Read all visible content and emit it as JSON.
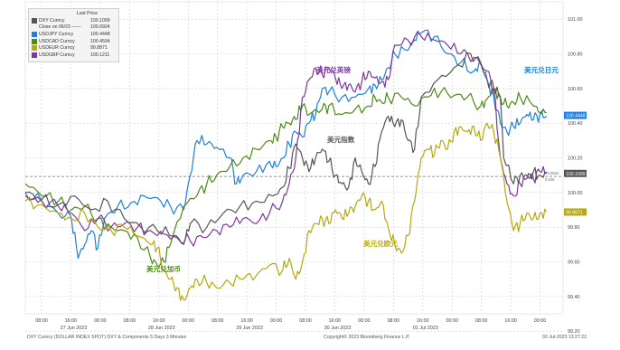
{
  "chart_data": {
    "type": "line",
    "title": "",
    "xlabel": "",
    "ylabel": "",
    "ylim": [
      99.3,
      101.1
    ],
    "y_ticks": [
      "101.00",
      "100.80",
      "100.60",
      "100.40",
      "100.20",
      "100.00",
      "99.80",
      "99.60",
      "99.40",
      "99.20"
    ],
    "x_time_ticks": [
      "08:00",
      "16:00",
      "00:00",
      "08:00",
      "16:00",
      "00:00",
      "08:00",
      "16:00",
      "00:00",
      "08:00",
      "16:00",
      "00:00",
      "08:00",
      "16:00",
      "00:00",
      "08:00",
      "16:00",
      "00:00"
    ],
    "x_date_ticks": [
      "27 Jun 2023",
      "28 Jun 2023",
      "29 Jun 2023",
      "30 Jun 2023",
      "01 Jul 2023"
    ],
    "legend_header": "Last Price",
    "reference_line": {
      "name": "Close on 06/23",
      "value": 100.0924
    },
    "series": [
      {
        "name": "DXY Curncy",
        "last": "100.1099",
        "color": "#555555",
        "points": [
          [
            0,
            100.0
          ],
          [
            5,
            99.96
          ],
          [
            10,
            99.93
          ],
          [
            15,
            99.98
          ],
          [
            20,
            99.9
          ],
          [
            25,
            99.95
          ],
          [
            30,
            99.85
          ],
          [
            35,
            99.8
          ],
          [
            40,
            99.78
          ],
          [
            45,
            99.75
          ],
          [
            48,
            99.7
          ],
          [
            50,
            99.82
          ],
          [
            55,
            99.8
          ],
          [
            60,
            99.88
          ],
          [
            65,
            99.92
          ],
          [
            70,
            99.95
          ],
          [
            75,
            99.98
          ],
          [
            78,
            100.03
          ],
          [
            80,
            100.14
          ],
          [
            82,
            100.28
          ],
          [
            84,
            100.2
          ],
          [
            86,
            100.12
          ],
          [
            88,
            100.2
          ],
          [
            90,
            100.25
          ],
          [
            92,
            100.18
          ],
          [
            94,
            100.1
          ],
          [
            96,
            100.05
          ],
          [
            98,
            100.03
          ],
          [
            100,
            100.2
          ],
          [
            102,
            100.12
          ],
          [
            104,
            100.05
          ],
          [
            106,
            100.15
          ],
          [
            108,
            100.35
          ],
          [
            110,
            100.44
          ],
          [
            112,
            100.38
          ],
          [
            114,
            100.42
          ],
          [
            116,
            100.3
          ],
          [
            118,
            100.25
          ],
          [
            120,
            100.55
          ],
          [
            125,
            100.65
          ],
          [
            130,
            100.72
          ],
          [
            135,
            100.8
          ],
          [
            138,
            100.75
          ],
          [
            140,
            100.65
          ],
          [
            142,
            100.6
          ],
          [
            144,
            100.55
          ],
          [
            145,
            100.2
          ],
          [
            148,
            100.05
          ],
          [
            150,
            100.1
          ],
          [
            152,
            100.08
          ],
          [
            154,
            100.12
          ],
          [
            156,
            100.1
          ],
          [
            158,
            100.11
          ]
        ]
      },
      {
        "name": "USDJPY Curncy",
        "last": "100.4448",
        "color": "#1f7fe0",
        "points": [
          [
            0,
            100.0
          ],
          [
            5,
            99.95
          ],
          [
            10,
            99.88
          ],
          [
            14,
            99.85
          ],
          [
            16,
            99.62
          ],
          [
            18,
            99.7
          ],
          [
            20,
            99.78
          ],
          [
            22,
            99.68
          ],
          [
            24,
            99.85
          ],
          [
            28,
            99.92
          ],
          [
            32,
            99.94
          ],
          [
            36,
            99.98
          ],
          [
            40,
            99.97
          ],
          [
            44,
            99.92
          ],
          [
            48,
            99.9
          ],
          [
            50,
            100.1
          ],
          [
            52,
            100.3
          ],
          [
            55,
            100.28
          ],
          [
            58,
            100.26
          ],
          [
            62,
            100.2
          ],
          [
            64,
            100.05
          ],
          [
            66,
            100.1
          ],
          [
            70,
            100.12
          ],
          [
            74,
            100.18
          ],
          [
            76,
            100.15
          ],
          [
            78,
            100.2
          ],
          [
            80,
            100.28
          ],
          [
            82,
            100.35
          ],
          [
            84,
            100.32
          ],
          [
            86,
            100.4
          ],
          [
            88,
            100.45
          ],
          [
            90,
            100.6
          ],
          [
            92,
            100.58
          ],
          [
            96,
            100.55
          ],
          [
            100,
            100.55
          ],
          [
            104,
            100.6
          ],
          [
            106,
            100.62
          ],
          [
            108,
            100.65
          ],
          [
            110,
            100.72
          ],
          [
            112,
            100.8
          ],
          [
            116,
            100.82
          ],
          [
            118,
            100.88
          ],
          [
            120,
            100.92
          ],
          [
            124,
            100.9
          ],
          [
            128,
            100.8
          ],
          [
            132,
            100.75
          ],
          [
            136,
            100.7
          ],
          [
            138,
            100.75
          ],
          [
            140,
            100.65
          ],
          [
            142,
            100.55
          ],
          [
            144,
            100.4
          ],
          [
            146,
            100.35
          ],
          [
            148,
            100.38
          ],
          [
            150,
            100.4
          ],
          [
            152,
            100.45
          ],
          [
            154,
            100.42
          ],
          [
            156,
            100.45
          ],
          [
            158,
            100.44
          ]
        ]
      },
      {
        "name": "USDCAD Curncy",
        "last": "100.4594",
        "color": "#4e8a18",
        "points": [
          [
            0,
            100.05
          ],
          [
            5,
            99.98
          ],
          [
            10,
            99.95
          ],
          [
            14,
            99.9
          ],
          [
            18,
            99.92
          ],
          [
            22,
            99.85
          ],
          [
            26,
            99.8
          ],
          [
            30,
            99.78
          ],
          [
            34,
            99.74
          ],
          [
            38,
            99.62
          ],
          [
            40,
            99.58
          ],
          [
            42,
            99.6
          ],
          [
            44,
            99.7
          ],
          [
            48,
            99.92
          ],
          [
            52,
            99.98
          ],
          [
            55,
            100.05
          ],
          [
            58,
            100.1
          ],
          [
            62,
            100.15
          ],
          [
            66,
            100.2
          ],
          [
            70,
            100.25
          ],
          [
            74,
            100.3
          ],
          [
            76,
            100.32
          ],
          [
            78,
            100.38
          ],
          [
            80,
            100.4
          ],
          [
            82,
            100.42
          ],
          [
            84,
            100.5
          ],
          [
            86,
            100.45
          ],
          [
            90,
            100.48
          ],
          [
            92,
            100.5
          ],
          [
            96,
            100.45
          ],
          [
            100,
            100.48
          ],
          [
            104,
            100.5
          ],
          [
            106,
            100.55
          ],
          [
            108,
            100.52
          ],
          [
            110,
            100.55
          ],
          [
            114,
            100.55
          ],
          [
            118,
            100.5
          ],
          [
            122,
            100.55
          ],
          [
            126,
            100.58
          ],
          [
            130,
            100.56
          ],
          [
            134,
            100.55
          ],
          [
            138,
            100.5
          ],
          [
            140,
            100.54
          ],
          [
            142,
            100.6
          ],
          [
            144,
            100.55
          ],
          [
            146,
            100.5
          ],
          [
            148,
            100.52
          ],
          [
            150,
            100.55
          ],
          [
            154,
            100.5
          ],
          [
            156,
            100.46
          ],
          [
            158,
            100.46
          ]
        ]
      },
      {
        "name": "USDEUR Curncy",
        "last": "99.8871",
        "color": "#b5a90f",
        "points": [
          [
            0,
            99.95
          ],
          [
            5,
            99.93
          ],
          [
            10,
            99.88
          ],
          [
            14,
            99.85
          ],
          [
            18,
            99.88
          ],
          [
            22,
            99.8
          ],
          [
            26,
            99.78
          ],
          [
            30,
            99.8
          ],
          [
            34,
            99.75
          ],
          [
            38,
            99.7
          ],
          [
            40,
            99.68
          ],
          [
            42,
            99.55
          ],
          [
            44,
            99.5
          ],
          [
            46,
            99.45
          ],
          [
            48,
            99.38
          ],
          [
            50,
            99.45
          ],
          [
            52,
            99.5
          ],
          [
            55,
            99.48
          ],
          [
            58,
            99.45
          ],
          [
            62,
            99.48
          ],
          [
            66,
            99.5
          ],
          [
            70,
            99.52
          ],
          [
            74,
            99.58
          ],
          [
            78,
            99.55
          ],
          [
            80,
            99.62
          ],
          [
            82,
            99.5
          ],
          [
            84,
            99.6
          ],
          [
            86,
            99.78
          ],
          [
            88,
            99.82
          ],
          [
            90,
            99.85
          ],
          [
            92,
            99.82
          ],
          [
            94,
            99.9
          ],
          [
            96,
            99.85
          ],
          [
            98,
            99.88
          ],
          [
            100,
            99.92
          ],
          [
            102,
            99.98
          ],
          [
            104,
            99.95
          ],
          [
            106,
            99.9
          ],
          [
            108,
            99.95
          ],
          [
            110,
            99.8
          ],
          [
            112,
            99.7
          ],
          [
            114,
            99.65
          ],
          [
            116,
            99.75
          ],
          [
            118,
            99.95
          ],
          [
            120,
            100.2
          ],
          [
            122,
            100.25
          ],
          [
            124,
            100.22
          ],
          [
            126,
            100.3
          ],
          [
            128,
            100.25
          ],
          [
            130,
            100.35
          ],
          [
            132,
            100.38
          ],
          [
            134,
            100.35
          ],
          [
            136,
            100.38
          ],
          [
            138,
            100.3
          ],
          [
            140,
            100.4
          ],
          [
            142,
            100.35
          ],
          [
            144,
            100.2
          ],
          [
            146,
            99.95
          ],
          [
            148,
            99.78
          ],
          [
            150,
            99.82
          ],
          [
            152,
            99.88
          ],
          [
            154,
            99.85
          ],
          [
            156,
            99.88
          ],
          [
            158,
            99.89
          ]
        ]
      },
      {
        "name": "USDGBP Curncy",
        "last": "100.1211",
        "color": "#7b3a9e",
        "points": [
          [
            0,
            99.98
          ],
          [
            5,
            99.95
          ],
          [
            10,
            99.92
          ],
          [
            14,
            99.88
          ],
          [
            18,
            99.78
          ],
          [
            22,
            99.85
          ],
          [
            26,
            99.8
          ],
          [
            30,
            99.82
          ],
          [
            34,
            99.8
          ],
          [
            38,
            99.78
          ],
          [
            42,
            99.76
          ],
          [
            46,
            99.74
          ],
          [
            50,
            99.72
          ],
          [
            54,
            99.74
          ],
          [
            58,
            99.78
          ],
          [
            62,
            99.8
          ],
          [
            66,
            99.85
          ],
          [
            70,
            99.82
          ],
          [
            74,
            99.88
          ],
          [
            78,
            99.95
          ],
          [
            80,
            100.05
          ],
          [
            82,
            100.2
          ],
          [
            84,
            100.55
          ],
          [
            86,
            100.65
          ],
          [
            88,
            100.72
          ],
          [
            90,
            100.68
          ],
          [
            92,
            100.72
          ],
          [
            94,
            100.66
          ],
          [
            96,
            100.6
          ],
          [
            98,
            100.62
          ],
          [
            100,
            100.58
          ],
          [
            102,
            100.64
          ],
          [
            104,
            100.7
          ],
          [
            106,
            100.66
          ],
          [
            108,
            100.64
          ],
          [
            110,
            100.65
          ],
          [
            112,
            100.85
          ],
          [
            116,
            100.88
          ],
          [
            120,
            100.9
          ],
          [
            124,
            100.88
          ],
          [
            128,
            100.85
          ],
          [
            132,
            100.8
          ],
          [
            136,
            100.78
          ],
          [
            140,
            100.7
          ],
          [
            142,
            100.6
          ],
          [
            144,
            100.2
          ],
          [
            146,
            100.05
          ],
          [
            148,
            99.98
          ],
          [
            150,
            100.05
          ],
          [
            152,
            100.1
          ],
          [
            154,
            100.08
          ],
          [
            156,
            100.12
          ],
          [
            158,
            100.12
          ]
        ]
      }
    ],
    "annotations": [
      {
        "text": "美元兑英镑",
        "color": "#7b3a9e"
      },
      {
        "text": "美元兑日元",
        "color": "#1f7fe0"
      },
      {
        "text": "美元指数",
        "color": "#555555"
      },
      {
        "text": "美元兑欧元",
        "color": "#b5a90f"
      },
      {
        "text": "美元兑加币",
        "color": "#4e8a18"
      }
    ],
    "extra_labels": {
      "ref_tag": "+0.0924",
      "ref_tag2": "0.025"
    },
    "grid": true,
    "legend_position": "top-left"
  },
  "footer": {
    "left": "DXY Curncy (DOLLAR INDEX SPOT) DXY & Components 5 Days 3 Minutes",
    "center": "Copyright© 2023 Bloomberg Finance L.P.",
    "right": "02-Jul-2023 13:27:22"
  }
}
